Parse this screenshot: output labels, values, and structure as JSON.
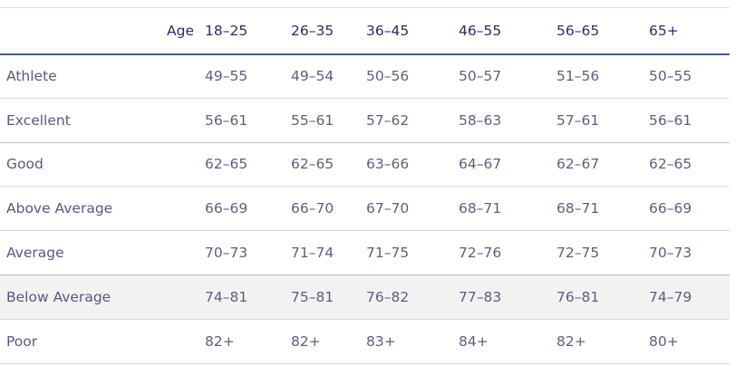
{
  "table": {
    "age_label": "Age",
    "age_groups": [
      "18–25",
      "26–35",
      "36–45",
      "46–55",
      "56–65",
      "65+"
    ],
    "rows": [
      {
        "label": "Athlete",
        "values": [
          "49–55",
          "49–54",
          "50–56",
          "50–57",
          "51–56",
          "50–55"
        ]
      },
      {
        "label": "Excellent",
        "values": [
          "56–61",
          "55–61",
          "57–62",
          "58–63",
          "57–61",
          "56–61"
        ]
      },
      {
        "label": "Good",
        "values": [
          "62–65",
          "62–65",
          "63–66",
          "64–67",
          "62–67",
          "62–65"
        ]
      },
      {
        "label": "Above Average",
        "values": [
          "66–69",
          "66–70",
          "67–70",
          "68–71",
          "68–71",
          "66–69"
        ]
      },
      {
        "label": "Average",
        "values": [
          "70–73",
          "71–74",
          "71–75",
          "72–76",
          "72–75",
          "70–73"
        ]
      },
      {
        "label": "Below Average",
        "values": [
          "74–81",
          "75–81",
          "76–82",
          "77–83",
          "76–81",
          "74–79"
        ]
      },
      {
        "label": "Poor",
        "values": [
          "82+",
          "82+",
          "83+",
          "84+",
          "82+",
          "80+"
        ]
      }
    ]
  },
  "colors": {
    "header_text": "#2b2d6b",
    "body_text": "#5f5d80",
    "header_rule": "#4a5a8f",
    "row_rule": "#dcdcdc",
    "highlight_row": "#f2f2f2"
  }
}
